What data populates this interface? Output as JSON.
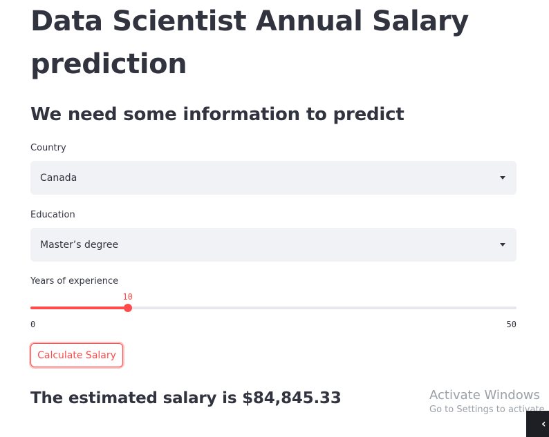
{
  "page": {
    "title": "Data Scientist Annual Salary prediction",
    "subtitle": "We need some information to predict"
  },
  "form": {
    "country": {
      "label": "Country",
      "value": "Canada"
    },
    "education": {
      "label": "Education",
      "value": "Master’s degree"
    },
    "experience": {
      "label": "Years of experience",
      "value": "10",
      "min": "0",
      "max": "50"
    },
    "submit_label": "Calculate Salary"
  },
  "result": {
    "text": "The estimated salary is $84,845.33"
  },
  "watermark": {
    "title": "Activate Windows",
    "subtitle": "Go to Settings to activate"
  },
  "corner_tab": {
    "glyph": "‹"
  },
  "colors": {
    "accent": "#ff4b4b",
    "text": "#31333f",
    "input_bg": "#f0f2f6"
  },
  "icons": {
    "select_caret": "chevron-down-icon",
    "corner": "chevron-left-icon"
  }
}
